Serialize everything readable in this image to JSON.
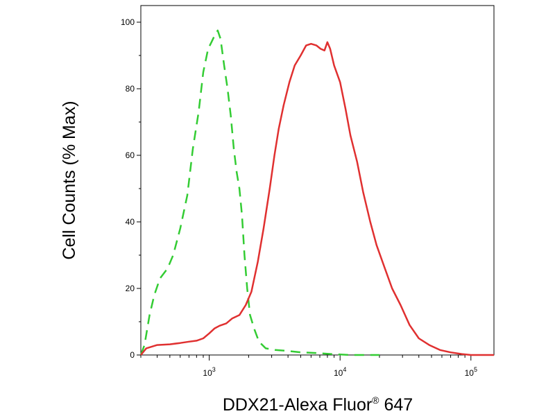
{
  "chart_data": {
    "type": "line",
    "title": "",
    "xlabel": "DDX21-Alexa Fluor",
    "xlabel_superscript": "®",
    "xlabel_suffix": " 647",
    "ylabel": "Cell Counts (% Max)",
    "xscale": "log",
    "xlim": [
      300,
      150000
    ],
    "ylim": [
      0,
      105
    ],
    "yticks": [
      {
        "value": 0,
        "label": "0"
      },
      {
        "value": 20,
        "label": "20"
      },
      {
        "value": 40,
        "label": "40"
      },
      {
        "value": 60,
        "label": "60"
      },
      {
        "value": 80,
        "label": "80"
      },
      {
        "value": 100,
        "label": "100"
      }
    ],
    "xticks_major": [
      {
        "value": 1000,
        "base": "10",
        "exp": "3"
      },
      {
        "value": 10000,
        "base": "10",
        "exp": "4"
      },
      {
        "value": 100000,
        "base": "10",
        "exp": "5"
      }
    ],
    "grid": false,
    "series": [
      {
        "color": "#33cc33",
        "dash": "dashed",
        "points": [
          [
            300,
            0
          ],
          [
            320,
            3
          ],
          [
            350,
            12
          ],
          [
            380,
            18
          ],
          [
            420,
            23
          ],
          [
            480,
            26
          ],
          [
            530,
            30
          ],
          [
            600,
            38
          ],
          [
            680,
            48
          ],
          [
            750,
            62
          ],
          [
            830,
            73
          ],
          [
            900,
            85
          ],
          [
            980,
            92
          ],
          [
            1040,
            94
          ],
          [
            1100,
            96
          ],
          [
            1160,
            97.5
          ],
          [
            1220,
            95
          ],
          [
            1300,
            87
          ],
          [
            1380,
            80
          ],
          [
            1460,
            72
          ],
          [
            1540,
            62
          ],
          [
            1620,
            55
          ],
          [
            1700,
            50
          ],
          [
            1780,
            42
          ],
          [
            1860,
            30
          ],
          [
            1950,
            20
          ],
          [
            2050,
            12
          ],
          [
            2200,
            8
          ],
          [
            2400,
            4
          ],
          [
            2700,
            2
          ],
          [
            3200,
            1.5
          ],
          [
            4000,
            1.2
          ],
          [
            5000,
            0.8
          ],
          [
            6500,
            0.6
          ],
          [
            8500,
            0.3
          ],
          [
            12000,
            0
          ],
          [
            20000,
            0
          ]
        ]
      },
      {
        "color": "#e03030",
        "dash": "solid",
        "points": [
          [
            300,
            0
          ],
          [
            330,
            2
          ],
          [
            400,
            3
          ],
          [
            500,
            3.2
          ],
          [
            600,
            3.6
          ],
          [
            700,
            4
          ],
          [
            800,
            4.3
          ],
          [
            900,
            5
          ],
          [
            1000,
            6.5
          ],
          [
            1100,
            8
          ],
          [
            1200,
            8.8
          ],
          [
            1350,
            9.5
          ],
          [
            1500,
            11
          ],
          [
            1700,
            12
          ],
          [
            1900,
            15
          ],
          [
            2100,
            19
          ],
          [
            2350,
            28
          ],
          [
            2600,
            38
          ],
          [
            2900,
            50
          ],
          [
            3150,
            60
          ],
          [
            3400,
            68
          ],
          [
            3700,
            75
          ],
          [
            4100,
            82
          ],
          [
            4500,
            87
          ],
          [
            5000,
            90
          ],
          [
            5500,
            93
          ],
          [
            6000,
            93.5
          ],
          [
            6600,
            93
          ],
          [
            7100,
            92
          ],
          [
            7600,
            91.5
          ],
          [
            8000,
            94
          ],
          [
            8400,
            92
          ],
          [
            9000,
            87
          ],
          [
            10000,
            82
          ],
          [
            11000,
            74
          ],
          [
            12000,
            66
          ],
          [
            13500,
            58
          ],
          [
            15000,
            49
          ],
          [
            17000,
            40
          ],
          [
            19000,
            33
          ],
          [
            22000,
            26
          ],
          [
            25000,
            20
          ],
          [
            29000,
            15
          ],
          [
            34000,
            9
          ],
          [
            40000,
            5
          ],
          [
            48000,
            3
          ],
          [
            58000,
            1.5
          ],
          [
            70000,
            0.8
          ],
          [
            85000,
            0.3
          ],
          [
            100000,
            0
          ],
          [
            150000,
            0
          ]
        ]
      }
    ]
  }
}
